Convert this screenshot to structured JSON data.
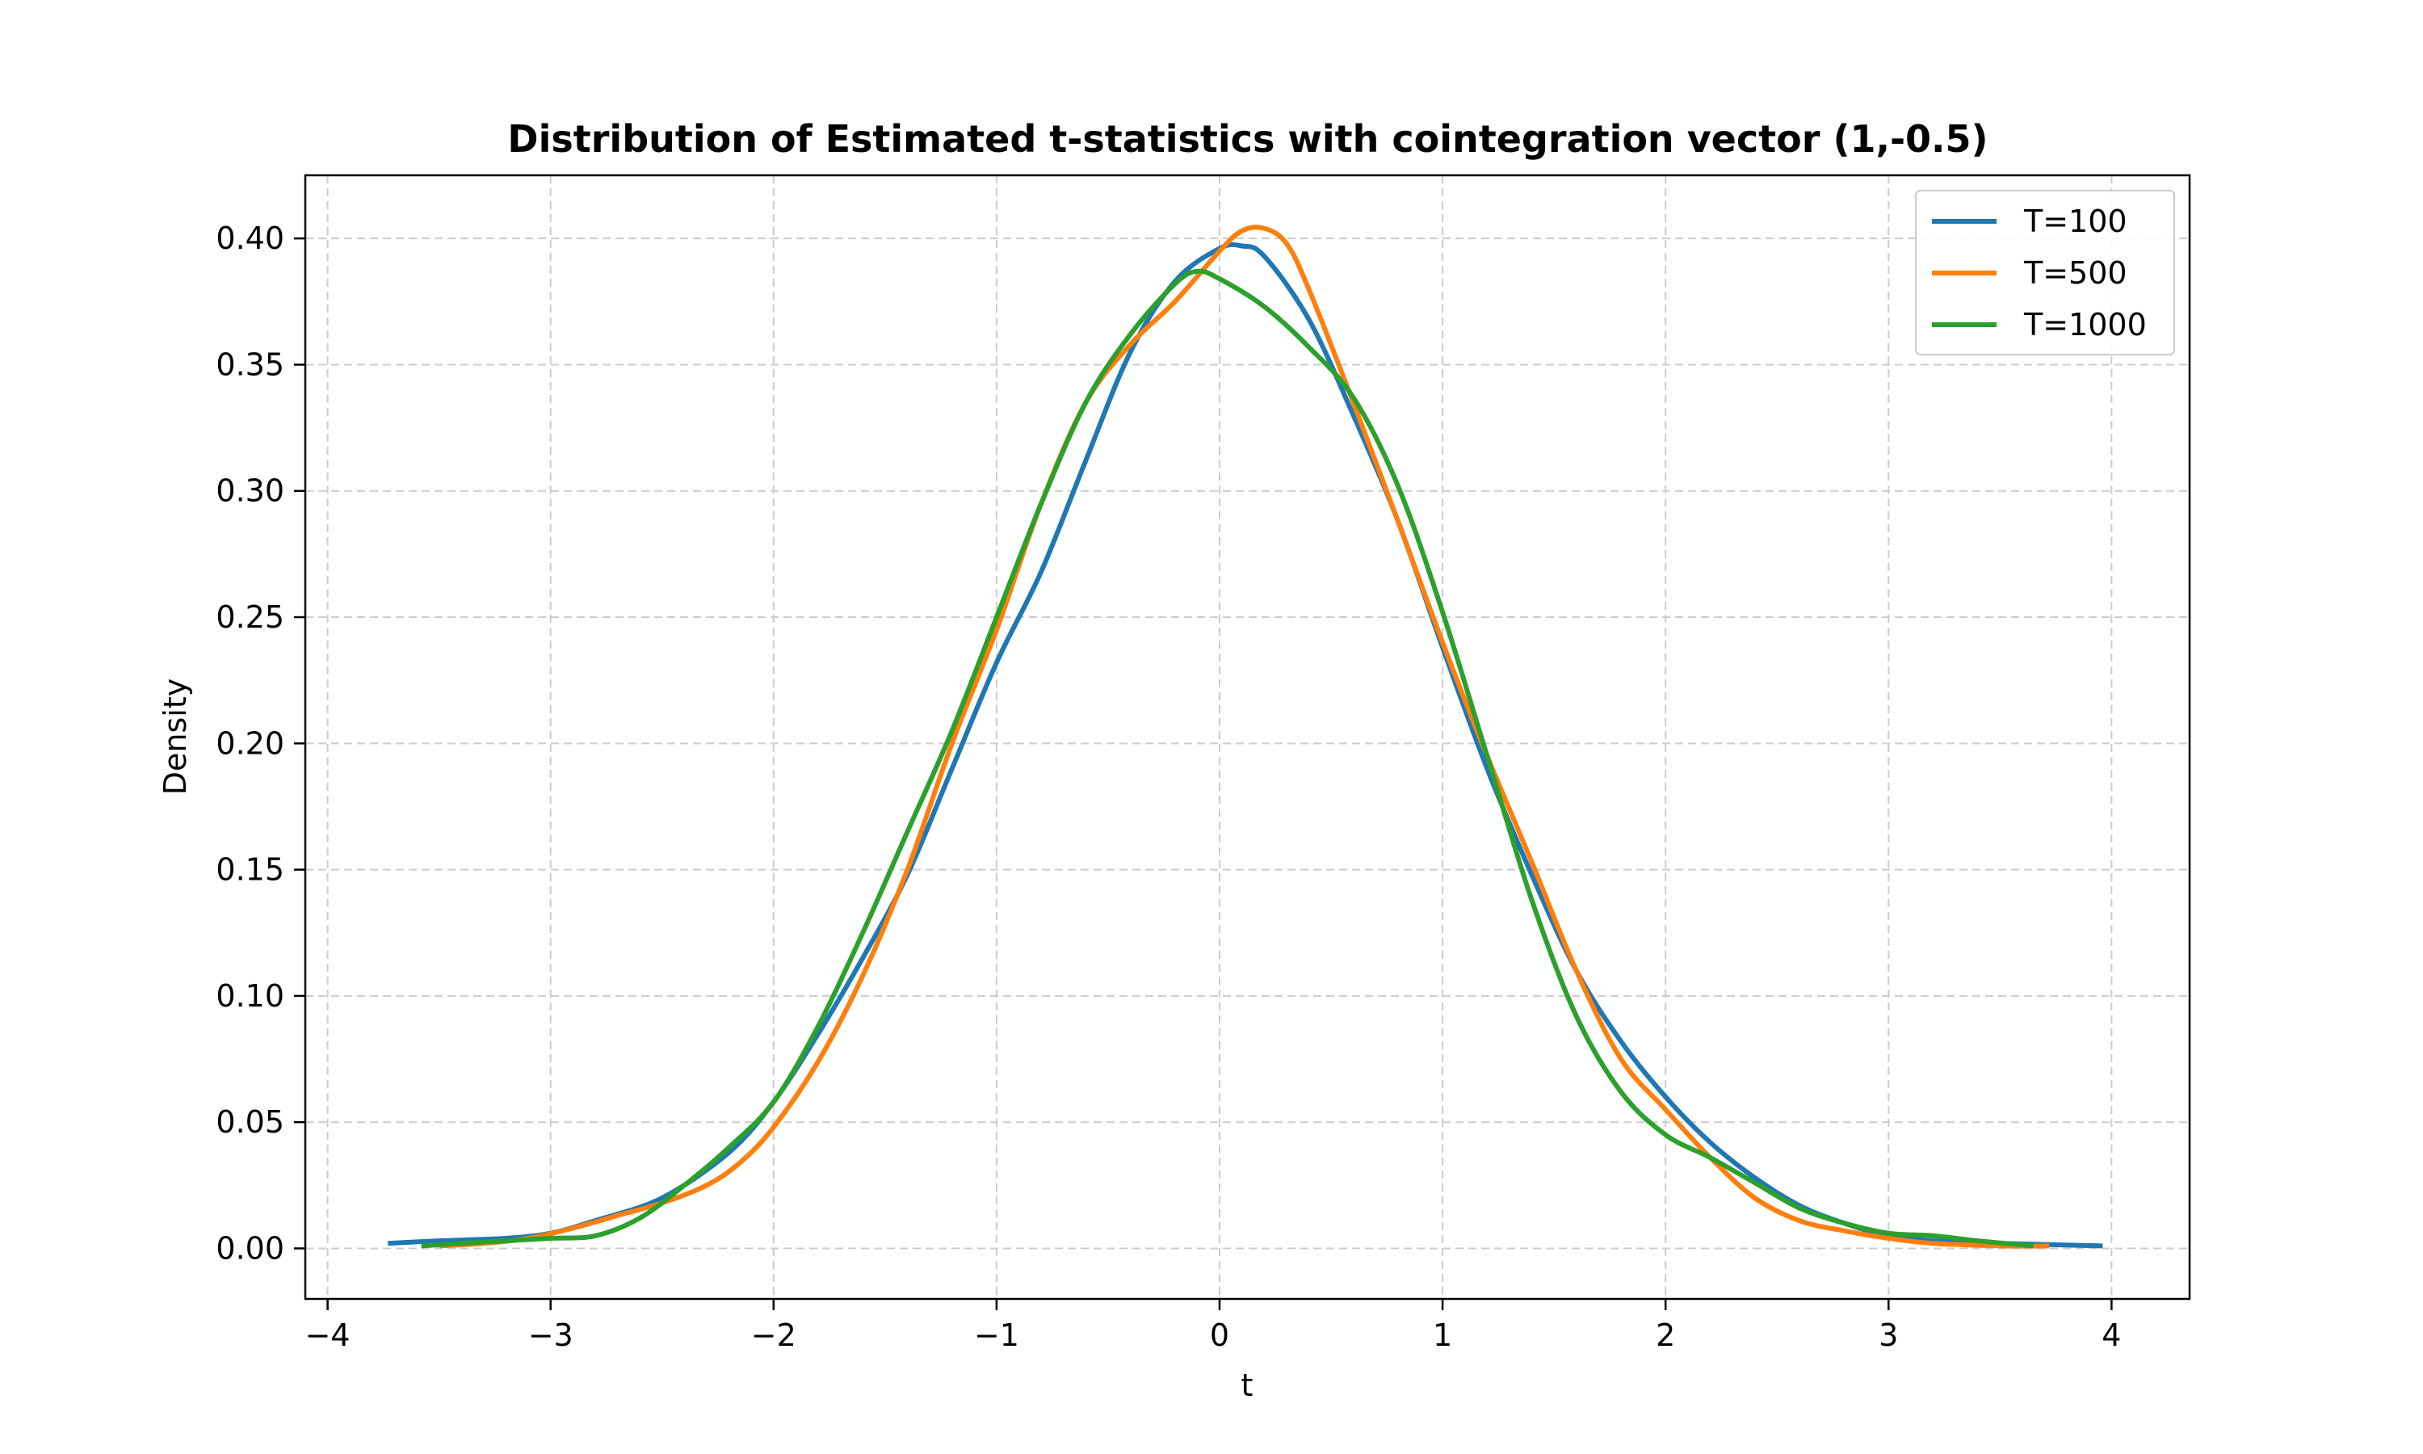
{
  "chart_data": {
    "type": "line",
    "title": "Distribution of Estimated t-statistics with cointegration vector (1,-0.5)",
    "xlabel": "t",
    "ylabel": "Density",
    "xlim": [
      -4.1,
      4.35
    ],
    "ylim": [
      -0.02,
      0.425
    ],
    "xticks": [
      -4,
      -3,
      -2,
      -1,
      0,
      1,
      2,
      3,
      4
    ],
    "xtick_labels": [
      "−4",
      "−3",
      "−2",
      "−1",
      "0",
      "1",
      "2",
      "3",
      "4"
    ],
    "yticks": [
      0.0,
      0.05,
      0.1,
      0.15,
      0.2,
      0.25,
      0.3,
      0.35,
      0.4
    ],
    "ytick_labels": [
      "0.00",
      "0.05",
      "0.10",
      "0.15",
      "0.20",
      "0.25",
      "0.30",
      "0.35",
      "0.40"
    ],
    "grid": true,
    "legend_position": "top-right",
    "series": [
      {
        "name": "T=100",
        "color": "#1f77b4",
        "points": [
          [
            -3.73,
            0.002
          ],
          [
            -3.5,
            0.003
          ],
          [
            -3.2,
            0.004
          ],
          [
            -3.0,
            0.006
          ],
          [
            -2.8,
            0.011
          ],
          [
            -2.5,
            0.02
          ],
          [
            -2.2,
            0.038
          ],
          [
            -2.0,
            0.058
          ],
          [
            -1.8,
            0.085
          ],
          [
            -1.6,
            0.115
          ],
          [
            -1.4,
            0.148
          ],
          [
            -1.2,
            0.19
          ],
          [
            -1.0,
            0.232
          ],
          [
            -0.8,
            0.268
          ],
          [
            -0.6,
            0.312
          ],
          [
            -0.4,
            0.355
          ],
          [
            -0.2,
            0.383
          ],
          [
            0.0,
            0.396
          ],
          [
            0.1,
            0.397
          ],
          [
            0.2,
            0.393
          ],
          [
            0.4,
            0.368
          ],
          [
            0.6,
            0.33
          ],
          [
            0.8,
            0.288
          ],
          [
            1.0,
            0.238
          ],
          [
            1.2,
            0.19
          ],
          [
            1.4,
            0.148
          ],
          [
            1.6,
            0.11
          ],
          [
            1.8,
            0.082
          ],
          [
            2.0,
            0.06
          ],
          [
            2.2,
            0.042
          ],
          [
            2.4,
            0.028
          ],
          [
            2.6,
            0.017
          ],
          [
            2.8,
            0.01
          ],
          [
            3.0,
            0.005
          ],
          [
            3.2,
            0.003
          ],
          [
            3.5,
            0.002
          ],
          [
            3.96,
            0.001
          ]
        ]
      },
      {
        "name": "T=500",
        "color": "#ff7f0e",
        "points": [
          [
            -3.5,
            0.001
          ],
          [
            -3.3,
            0.002
          ],
          [
            -3.1,
            0.004
          ],
          [
            -2.9,
            0.008
          ],
          [
            -2.7,
            0.013
          ],
          [
            -2.5,
            0.018
          ],
          [
            -2.3,
            0.025
          ],
          [
            -2.15,
            0.034
          ],
          [
            -2.0,
            0.048
          ],
          [
            -1.8,
            0.074
          ],
          [
            -1.6,
            0.108
          ],
          [
            -1.4,
            0.15
          ],
          [
            -1.2,
            0.2
          ],
          [
            -1.0,
            0.245
          ],
          [
            -0.8,
            0.295
          ],
          [
            -0.6,
            0.335
          ],
          [
            -0.4,
            0.358
          ],
          [
            -0.2,
            0.375
          ],
          [
            0.0,
            0.395
          ],
          [
            0.1,
            0.403
          ],
          [
            0.2,
            0.404
          ],
          [
            0.3,
            0.398
          ],
          [
            0.4,
            0.38
          ],
          [
            0.6,
            0.335
          ],
          [
            0.8,
            0.288
          ],
          [
            1.0,
            0.24
          ],
          [
            1.2,
            0.195
          ],
          [
            1.4,
            0.153
          ],
          [
            1.6,
            0.11
          ],
          [
            1.8,
            0.075
          ],
          [
            2.0,
            0.055
          ],
          [
            2.2,
            0.036
          ],
          [
            2.4,
            0.02
          ],
          [
            2.6,
            0.011
          ],
          [
            2.8,
            0.007
          ],
          [
            3.0,
            0.004
          ],
          [
            3.2,
            0.002
          ],
          [
            3.5,
            0.001
          ],
          [
            3.72,
            0.001
          ]
        ]
      },
      {
        "name": "T=1000",
        "color": "#2ca02c",
        "points": [
          [
            -3.58,
            0.001
          ],
          [
            -3.4,
            0.002
          ],
          [
            -3.2,
            0.003
          ],
          [
            -3.0,
            0.004
          ],
          [
            -2.8,
            0.005
          ],
          [
            -2.6,
            0.012
          ],
          [
            -2.4,
            0.025
          ],
          [
            -2.2,
            0.04
          ],
          [
            -2.0,
            0.058
          ],
          [
            -1.8,
            0.088
          ],
          [
            -1.6,
            0.125
          ],
          [
            -1.4,
            0.165
          ],
          [
            -1.2,
            0.205
          ],
          [
            -1.0,
            0.25
          ],
          [
            -0.8,
            0.295
          ],
          [
            -0.6,
            0.335
          ],
          [
            -0.4,
            0.362
          ],
          [
            -0.2,
            0.382
          ],
          [
            -0.1,
            0.387
          ],
          [
            0.0,
            0.384
          ],
          [
            0.2,
            0.373
          ],
          [
            0.4,
            0.357
          ],
          [
            0.6,
            0.337
          ],
          [
            0.8,
            0.302
          ],
          [
            1.0,
            0.252
          ],
          [
            1.2,
            0.195
          ],
          [
            1.4,
            0.138
          ],
          [
            1.6,
            0.092
          ],
          [
            1.8,
            0.062
          ],
          [
            2.0,
            0.045
          ],
          [
            2.2,
            0.036
          ],
          [
            2.4,
            0.026
          ],
          [
            2.6,
            0.016
          ],
          [
            2.8,
            0.01
          ],
          [
            3.0,
            0.006
          ],
          [
            3.2,
            0.005
          ],
          [
            3.4,
            0.003
          ],
          [
            3.65,
            0.001
          ]
        ]
      }
    ]
  }
}
